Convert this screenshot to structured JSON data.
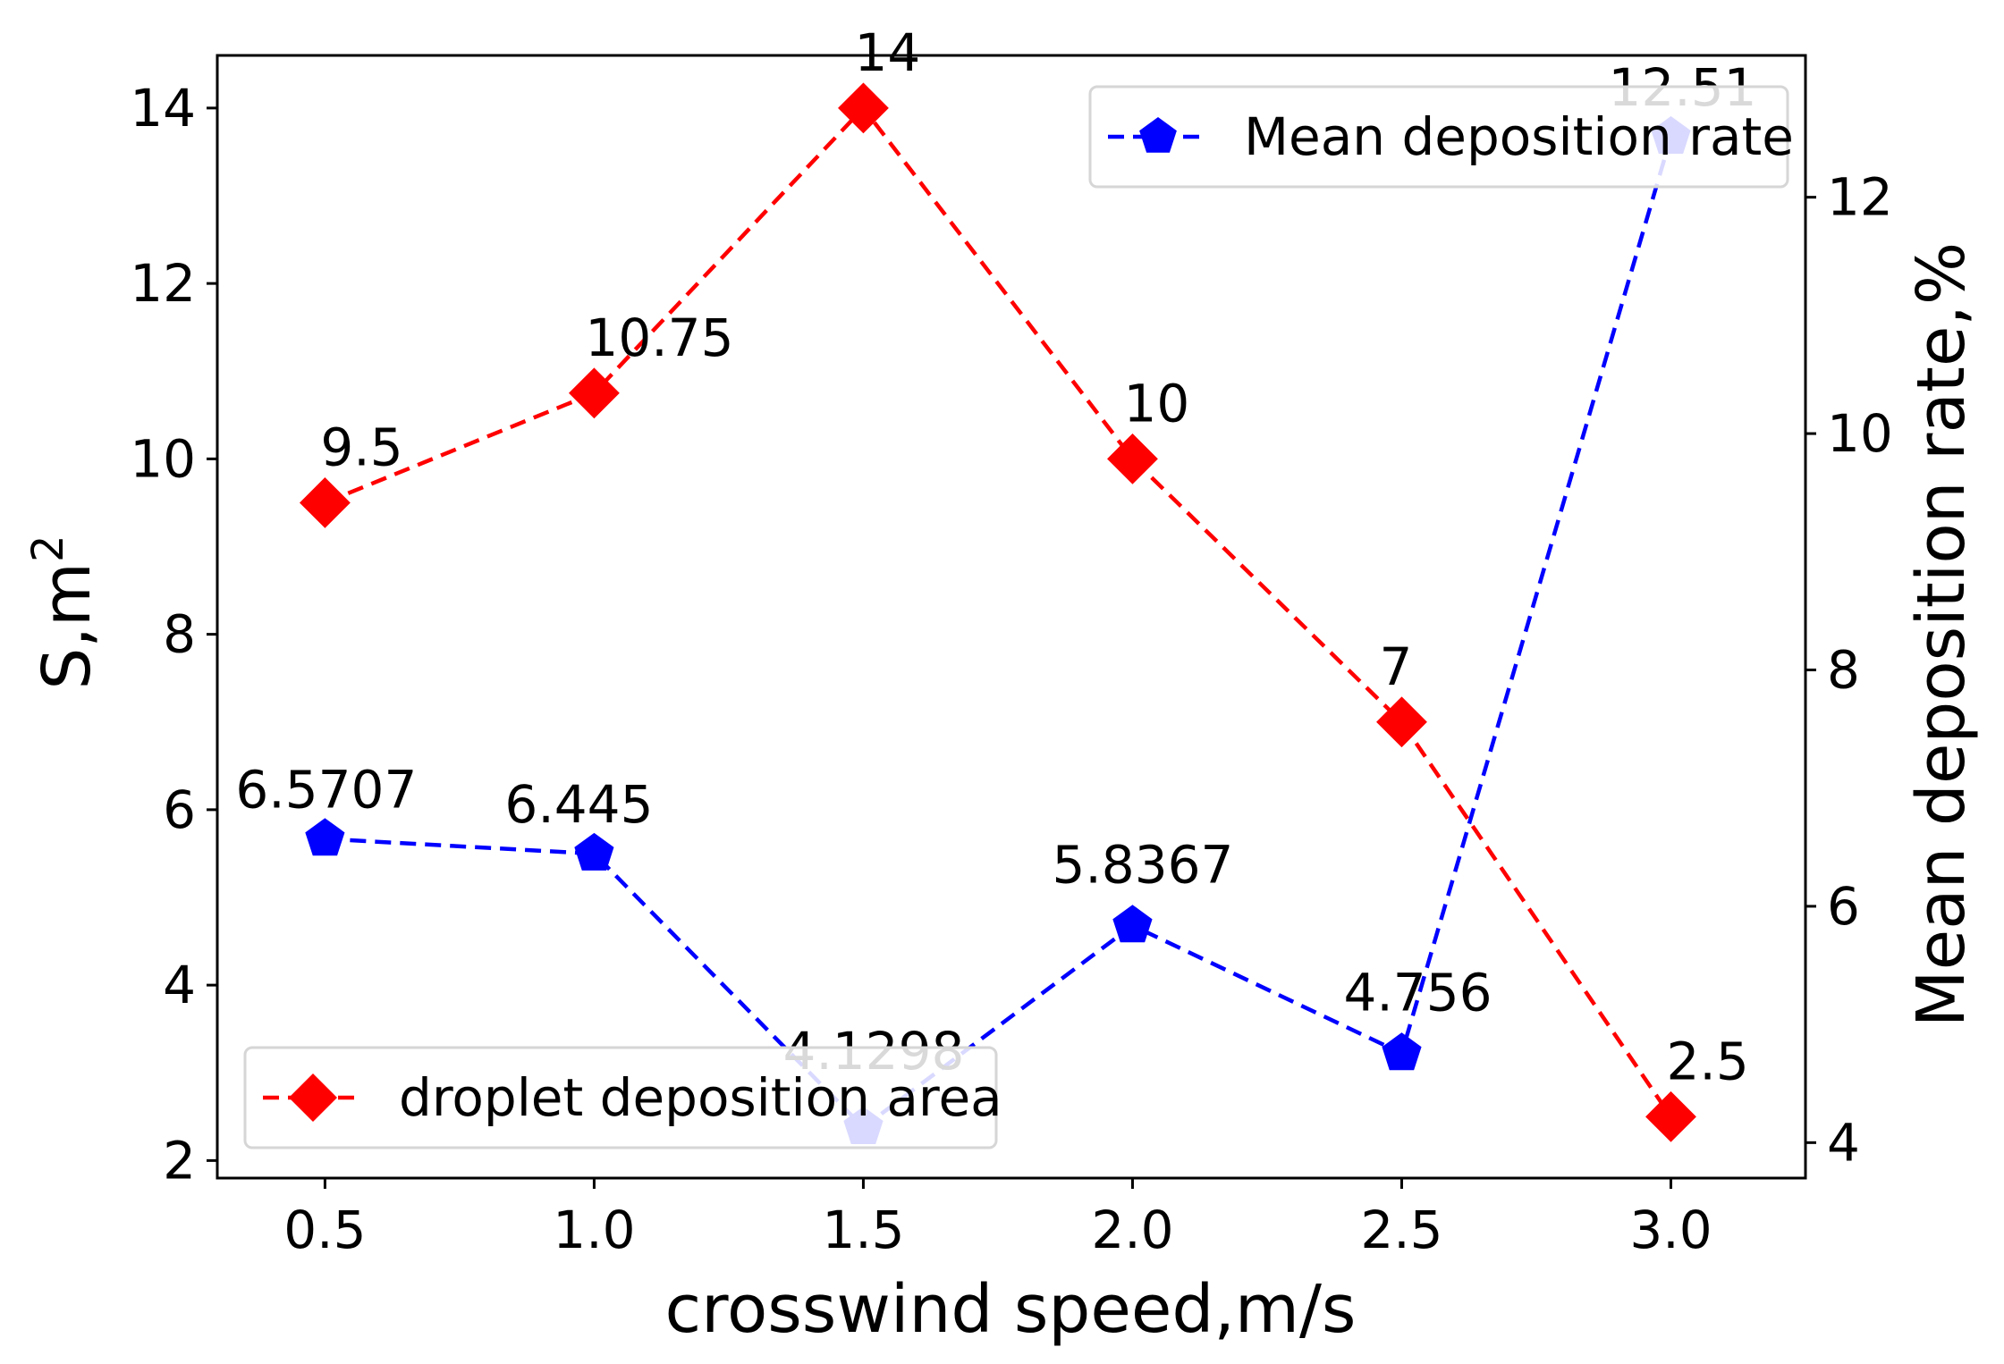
{
  "chart_data": {
    "type": "line",
    "title": "",
    "xlabel": "crosswind speed,m/s",
    "ylabel_left_base": "S,m",
    "ylabel_left_sup": "2",
    "ylabel_right": "Mean deposition rate,%",
    "x": [
      0.5,
      1.0,
      1.5,
      2.0,
      2.5,
      3.0
    ],
    "x_tick_labels": [
      "0.5",
      "1.0",
      "1.5",
      "2.0",
      "2.5",
      "3.0"
    ],
    "xlim": [
      0.3,
      3.25
    ],
    "ylim_left": [
      1.8,
      14.6
    ],
    "ylim_right": [
      3.7,
      13.2
    ],
    "y_ticks_left": [
      2,
      4,
      6,
      8,
      10,
      12,
      14
    ],
    "y_tick_labels_left": [
      "2",
      "4",
      "6",
      "8",
      "10",
      "12",
      "14"
    ],
    "y_ticks_right": [
      4,
      6,
      8,
      10,
      12
    ],
    "y_tick_labels_right": [
      "4",
      "6",
      "8",
      "10",
      "12"
    ],
    "grid": false,
    "series": [
      {
        "name": "droplet deposition area",
        "axis": "left",
        "color": "#ff0000",
        "marker": "diamond",
        "line_style": "dashed",
        "values": [
          9.5,
          10.75,
          14,
          10,
          7,
          2.5
        ],
        "labels": [
          "9.5",
          "10.75",
          "14",
          "10",
          "7",
          "2.5"
        ],
        "legend_location": "lower-left"
      },
      {
        "name": "Mean deposition rate",
        "axis": "right",
        "color": "#0000ff",
        "marker": "pentagon",
        "line_style": "dashed",
        "values": [
          6.5707,
          6.445,
          4.1298,
          5.8367,
          4.756,
          12.51
        ],
        "labels": [
          "6.5707",
          "6.445",
          "4.1298",
          "5.8367",
          "4.756",
          "12.51"
        ],
        "legend_location": "upper-right"
      }
    ]
  }
}
